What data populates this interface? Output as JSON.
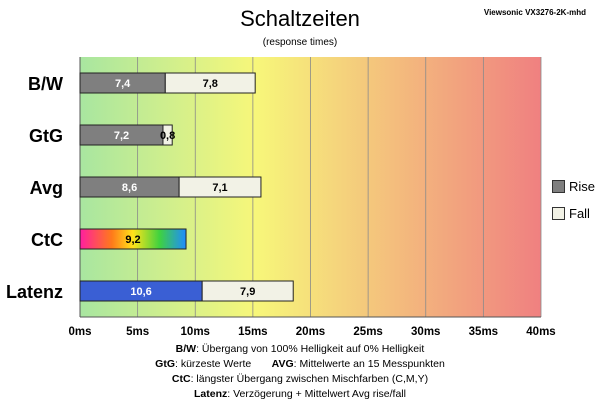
{
  "header": {
    "title": "Schaltzeiten",
    "subtitle": "(response times)",
    "source": "Viewsonic VX3276-2K-mhd"
  },
  "legend": [
    {
      "label": "Rise",
      "color": "#7f7f7f"
    },
    {
      "label": "Fall",
      "color": "#f2f2e6"
    }
  ],
  "notes": [
    {
      "key": "B/W",
      "text": ":  Übergang von 100% Helligkeit auf 0% Helligkeit"
    },
    {
      "key": "GtG",
      "text": ": kürzeste  Werte",
      "key2": "AVG",
      "text2": ": Mittelwerte  an 15 Messpunkten"
    },
    {
      "key": "CtC",
      "text": ": längster Übergang  zwischen Mischfarben (C,M,Y)"
    },
    {
      "key": "Latenz",
      "text": ": Verzögerung  + Mittelwert Avg rise/fall"
    }
  ],
  "chart_data": {
    "type": "bar",
    "orientation": "horizontal",
    "stacked": true,
    "categories": [
      "B/W",
      "GtG",
      "Avg",
      "CtC",
      "Latenz"
    ],
    "series": [
      {
        "name": "Rise",
        "color": "#7f7f7f",
        "values": [
          7.4,
          7.2,
          8.6,
          9.2,
          10.6
        ],
        "labels": [
          "7,4",
          "7,2",
          "8,6",
          "9,2",
          "10,6"
        ]
      },
      {
        "name": "Fall",
        "color": "#f2f2e6",
        "values": [
          7.8,
          0.8,
          7.1,
          null,
          7.9
        ],
        "labels": [
          "7,8",
          "0,8",
          "7,1",
          "",
          "7,9"
        ]
      }
    ],
    "special_colors": {
      "CtC": "rainbow",
      "Latenz": "#3a5fd4"
    },
    "xlim": [
      0,
      40
    ],
    "xticks": [
      0,
      5,
      10,
      15,
      20,
      25,
      30,
      35,
      40
    ],
    "xtick_labels": [
      "0ms",
      "5ms",
      "10ms",
      "15ms",
      "20ms",
      "25ms",
      "30ms",
      "35ms",
      "40ms"
    ],
    "background_gradient": [
      "#a8e6a0",
      "#f7f77a",
      "#f08080"
    ],
    "grid": true,
    "legend_position": "right"
  }
}
